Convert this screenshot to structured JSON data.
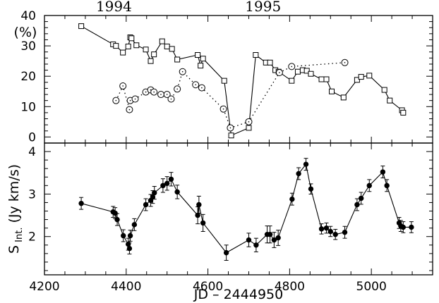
{
  "chart_data": [
    {
      "type": "line",
      "panel": "top",
      "ylabel": "(%)",
      "xlim": [
        4200,
        5150
      ],
      "ylim": [
        -2,
        40
      ],
      "yticks": [
        0,
        10,
        20,
        30,
        40
      ],
      "year_labels": [
        {
          "text": "1994",
          "x": 4370
        },
        {
          "text": "1995",
          "x": 4735
        }
      ],
      "series": [
        {
          "marker": "open-square",
          "line": "solid",
          "points": [
            [
              4290,
              36.5
            ],
            [
              4368,
              30.5
            ],
            [
              4375,
              30.0
            ],
            [
              4392,
              27.8
            ],
            [
              4405,
              29.8
            ],
            [
              4410,
              32.8
            ],
            [
              4413,
              32.5
            ],
            [
              4425,
              30.2
            ],
            [
              4448,
              28.8
            ],
            [
              4460,
              25.0
            ],
            [
              4468,
              27.2
            ],
            [
              4488,
              31.5
            ],
            [
              4500,
              29.8
            ],
            [
              4512,
              29.0
            ],
            [
              4525,
              25.5
            ],
            [
              4575,
              27.0
            ],
            [
              4582,
              23.5
            ],
            [
              4588,
              25.8
            ],
            [
              4640,
              18.5
            ],
            [
              4657,
              0.5
            ],
            [
              4700,
              3.0
            ],
            [
              4717,
              27.0
            ],
            [
              4742,
              24.5
            ],
            [
              4752,
              24.5
            ],
            [
              4765,
              22.0
            ],
            [
              4773,
              21.5
            ],
            [
              4805,
              18.5
            ],
            [
              4820,
              21.5
            ],
            [
              4832,
              22.0
            ],
            [
              4842,
              21.8
            ],
            [
              4852,
              20.8
            ],
            [
              4878,
              19.0
            ],
            [
              4890,
              19.0
            ],
            [
              4903,
              15.0
            ],
            [
              4932,
              13.0
            ],
            [
              4965,
              18.8
            ],
            [
              4975,
              19.8
            ],
            [
              4995,
              20.2
            ],
            [
              5032,
              15.5
            ],
            [
              5045,
              12.0
            ],
            [
              5075,
              8.8
            ],
            [
              5078,
              8.0
            ]
          ]
        },
        {
          "marker": "open-circle",
          "line": "dotted",
          "points": [
            [
              4375,
              12.0
            ],
            [
              4392,
              16.8
            ],
            [
              4408,
              9.0
            ],
            [
              4410,
              12.0
            ],
            [
              4422,
              12.5
            ],
            [
              4448,
              14.8
            ],
            [
              4460,
              15.5
            ],
            [
              4468,
              14.8
            ],
            [
              4485,
              14.0
            ],
            [
              4500,
              14.0
            ],
            [
              4510,
              12.5
            ],
            [
              4525,
              15.8
            ],
            [
              4538,
              21.5
            ],
            [
              4570,
              17.2
            ],
            [
              4585,
              16.2
            ],
            [
              4638,
              9.2
            ],
            [
              4655,
              3.0
            ],
            [
              4700,
              5.0
            ],
            [
              4775,
              21.2
            ],
            [
              4805,
              23.2
            ],
            [
              4935,
              24.5
            ]
          ]
        }
      ]
    },
    {
      "type": "line",
      "panel": "bottom",
      "xlabel": "JD – 2444950",
      "ylabel": "S Int. (Jy km/s)",
      "xlim": [
        4200,
        5150
      ],
      "ylim": [
        1.1,
        4.2
      ],
      "xticks": [
        4200,
        4400,
        4600,
        4800,
        5000
      ],
      "yticks": [
        2,
        3,
        4
      ],
      "series": [
        {
          "marker": "filled-circle",
          "line": "solid",
          "error_bars": true,
          "points": [
            [
              4290,
              2.78,
              0.14
            ],
            [
              4368,
              2.58,
              0.13
            ],
            [
              4373,
              2.55,
              0.13
            ],
            [
              4378,
              2.4,
              0.14
            ],
            [
              4393,
              2.02,
              0.14
            ],
            [
              4405,
              1.82,
              0.14
            ],
            [
              4408,
              1.72,
              0.13
            ],
            [
              4410,
              2.02,
              0.13
            ],
            [
              4420,
              2.28,
              0.14
            ],
            [
              4448,
              2.75,
              0.14
            ],
            [
              4460,
              2.85,
              0.14
            ],
            [
              4465,
              2.93,
              0.15
            ],
            [
              4469,
              3.03,
              0.15
            ],
            [
              4490,
              3.2,
              0.16
            ],
            [
              4500,
              3.25,
              0.16
            ],
            [
              4510,
              3.35,
              0.16
            ],
            [
              4525,
              3.05,
              0.16
            ],
            [
              4575,
              2.5,
              0.2
            ],
            [
              4578,
              2.75,
              0.2
            ],
            [
              4588,
              2.32,
              0.2
            ],
            [
              4645,
              1.62,
              0.18
            ],
            [
              4700,
              1.92,
              0.16
            ],
            [
              4718,
              1.8,
              0.16
            ],
            [
              4745,
              2.05,
              0.2
            ],
            [
              4752,
              2.05,
              0.2
            ],
            [
              4762,
              1.92,
              0.18
            ],
            [
              4772,
              1.97,
              0.18
            ],
            [
              4806,
              2.88,
              0.14
            ],
            [
              4822,
              3.48,
              0.14
            ],
            [
              4840,
              3.7,
              0.14
            ],
            [
              4852,
              3.12,
              0.12
            ],
            [
              4878,
              2.18,
              0.12
            ],
            [
              4890,
              2.2,
              0.12
            ],
            [
              4900,
              2.12,
              0.12
            ],
            [
              4912,
              2.05,
              0.12
            ],
            [
              4935,
              2.1,
              0.14
            ],
            [
              4965,
              2.75,
              0.14
            ],
            [
              4975,
              2.9,
              0.14
            ],
            [
              4995,
              3.2,
              0.14
            ],
            [
              5028,
              3.52,
              0.14
            ],
            [
              5038,
              3.2,
              0.14
            ],
            [
              5068,
              2.32,
              0.13
            ],
            [
              5072,
              2.25,
              0.13
            ],
            [
              5078,
              2.22,
              0.13
            ],
            [
              5098,
              2.22,
              0.13
            ]
          ]
        }
      ]
    }
  ]
}
